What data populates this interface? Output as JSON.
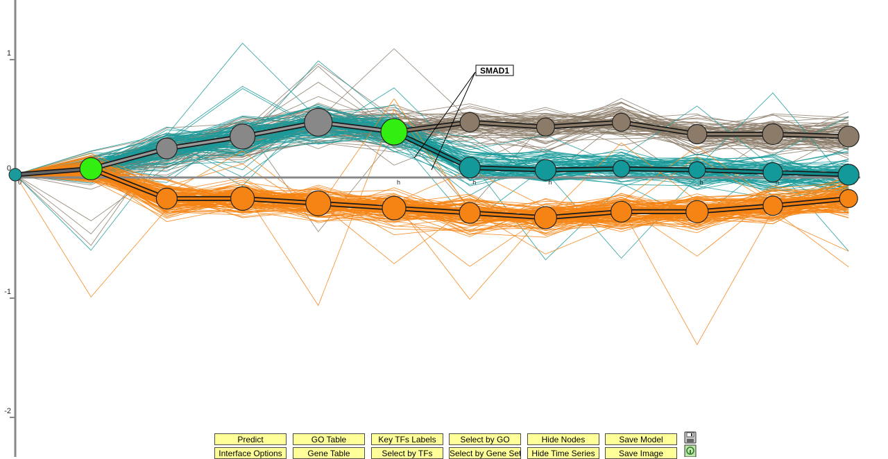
{
  "chart_data": {
    "type": "line",
    "ylim": [
      -2.2,
      1.4
    ],
    "y_ticks": [
      "1",
      "0",
      "-1",
      "-2"
    ],
    "y_tick_values": [
      1,
      0,
      -1,
      -2
    ],
    "x": [
      0,
      1,
      2,
      3,
      4,
      5,
      6,
      7,
      8,
      9,
      10,
      11
    ],
    "x_tick_labels": [
      "0",
      "",
      "",
      "",
      "",
      "h",
      "h",
      "h",
      "",
      "h",
      "h",
      "h"
    ],
    "annotation": "SMAD1",
    "model": {
      "root": {
        "x": 0,
        "y": 0,
        "color": "#1a9a9a"
      },
      "paths": [
        {
          "color": "#999999",
          "points": [
            [
              1,
              0.05
            ],
            [
              2,
              0.22
            ],
            [
              3,
              0.32
            ],
            [
              4,
              0.44
            ],
            [
              5,
              0.36
            ]
          ]
        },
        {
          "color": "#8b7b68",
          "points": [
            [
              5,
              0.36
            ],
            [
              6,
              0.44
            ],
            [
              7,
              0.4
            ],
            [
              8,
              0.44
            ],
            [
              9,
              0.34
            ],
            [
              10,
              0.34
            ],
            [
              11,
              0.32
            ]
          ]
        },
        {
          "color": "#108a8a",
          "points": [
            [
              5,
              0.36
            ],
            [
              6,
              0.06
            ],
            [
              7,
              0.04
            ],
            [
              8,
              0.05
            ],
            [
              9,
              0.04
            ],
            [
              10,
              0.02
            ],
            [
              11,
              0.0
            ]
          ]
        },
        {
          "color": "#f07d10",
          "points": [
            [
              1,
              0.05
            ],
            [
              2,
              -0.2
            ],
            [
              3,
              -0.2
            ],
            [
              4,
              -0.24
            ],
            [
              5,
              -0.28
            ],
            [
              6,
              -0.32
            ],
            [
              7,
              -0.36
            ],
            [
              8,
              -0.31
            ],
            [
              9,
              -0.31
            ],
            [
              10,
              -0.26
            ],
            [
              11,
              -0.2
            ]
          ]
        },
        {
          "color": "#666666",
          "points": [
            [
              0,
              0
            ],
            [
              1,
              0.05
            ]
          ]
        }
      ],
      "nodes": [
        {
          "x": 1,
          "y": 0.05,
          "color": "#33ee11",
          "size": 16
        },
        {
          "x": 2,
          "y": 0.22,
          "color": "#888888",
          "size": 15
        },
        {
          "x": 3,
          "y": 0.32,
          "color": "#888888",
          "size": 18
        },
        {
          "x": 4,
          "y": 0.44,
          "color": "#888888",
          "size": 20
        },
        {
          "x": 5,
          "y": 0.36,
          "color": "#33ee11",
          "size": 19
        },
        {
          "x": 6,
          "y": 0.44,
          "color": "#8b7b68",
          "size": 14
        },
        {
          "x": 7,
          "y": 0.4,
          "color": "#8b7b68",
          "size": 13
        },
        {
          "x": 8,
          "y": 0.44,
          "color": "#8b7b68",
          "size": 13
        },
        {
          "x": 9,
          "y": 0.34,
          "color": "#8b7b68",
          "size": 14
        },
        {
          "x": 10,
          "y": 0.34,
          "color": "#8b7b68",
          "size": 15
        },
        {
          "x": 11,
          "y": 0.32,
          "color": "#8b7b68",
          "size": 15
        },
        {
          "x": 6,
          "y": 0.06,
          "color": "#139999",
          "size": 15
        },
        {
          "x": 7,
          "y": 0.04,
          "color": "#139999",
          "size": 15
        },
        {
          "x": 8,
          "y": 0.05,
          "color": "#139999",
          "size": 12
        },
        {
          "x": 9,
          "y": 0.04,
          "color": "#139999",
          "size": 12
        },
        {
          "x": 10,
          "y": 0.02,
          "color": "#139999",
          "size": 14
        },
        {
          "x": 11,
          "y": 0.0,
          "color": "#139999",
          "size": 15
        },
        {
          "x": 2,
          "y": -0.2,
          "color": "#f58414",
          "size": 15
        },
        {
          "x": 3,
          "y": -0.2,
          "color": "#f58414",
          "size": 17
        },
        {
          "x": 4,
          "y": -0.24,
          "color": "#f58414",
          "size": 18
        },
        {
          "x": 5,
          "y": -0.28,
          "color": "#f58414",
          "size": 17
        },
        {
          "x": 6,
          "y": -0.32,
          "color": "#f58414",
          "size": 15
        },
        {
          "x": 7,
          "y": -0.36,
          "color": "#f58414",
          "size": 16
        },
        {
          "x": 8,
          "y": -0.31,
          "color": "#f58414",
          "size": 15
        },
        {
          "x": 9,
          "y": -0.31,
          "color": "#f58414",
          "size": 16
        },
        {
          "x": 10,
          "y": -0.26,
          "color": "#f58414",
          "size": 14
        },
        {
          "x": 11,
          "y": -0.2,
          "color": "#f58414",
          "size": 13
        }
      ]
    },
    "series_groups": [
      {
        "color": "#8b7b68",
        "count": 75,
        "base": [
          0,
          0.05,
          0.22,
          0.32,
          0.44,
          0.36,
          0.44,
          0.4,
          0.44,
          0.34,
          0.34,
          0.32
        ],
        "spread": 0.28
      },
      {
        "color": "#1a9a9a",
        "count": 85,
        "base": [
          0,
          0.05,
          0.22,
          0.32,
          0.44,
          0.36,
          0.06,
          0.04,
          0.05,
          0.04,
          0.02,
          0.0
        ],
        "spread": 0.28
      },
      {
        "color": "#f58414",
        "count": 120,
        "base": [
          0,
          0.05,
          -0.2,
          -0.2,
          -0.24,
          -0.28,
          -0.32,
          -0.36,
          -0.31,
          -0.31,
          -0.26,
          -0.2
        ],
        "spread": 0.24
      }
    ]
  },
  "toolbar": {
    "row1": [
      "Predict",
      "GO Table",
      "Key TFs Labels",
      "Select by GO",
      "Hide Nodes",
      "Save Model"
    ],
    "row2": [
      "Interface Options",
      "Gene Table",
      "Select by TFs",
      "Select by Gene Set",
      "Hide Time Series",
      "Save Image"
    ],
    "icons": [
      "floppy-disk-icon",
      "help-icon"
    ]
  }
}
